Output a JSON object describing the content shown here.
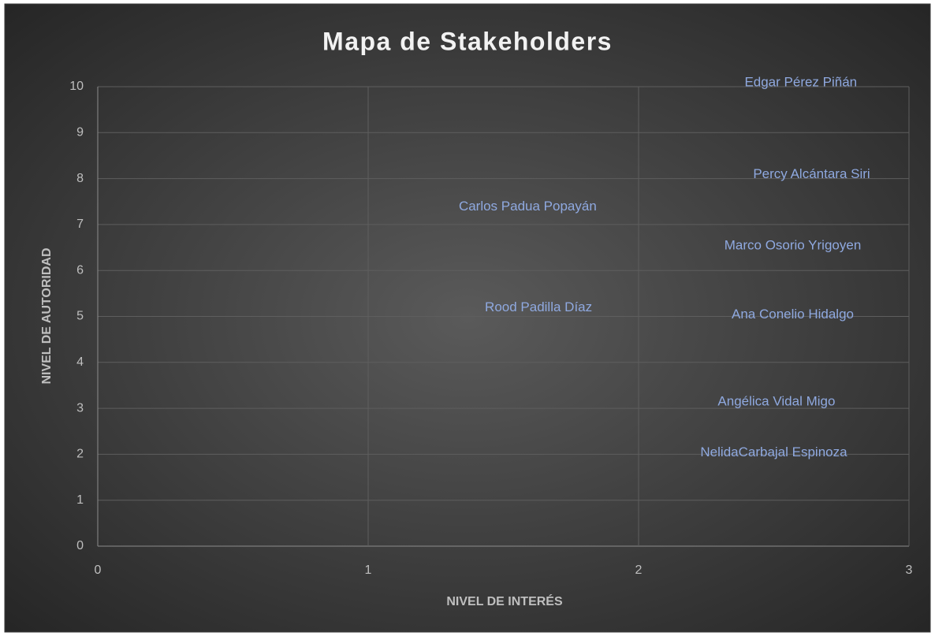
{
  "chart_data": {
    "type": "scatter",
    "title": "Mapa de Stakeholders",
    "x_label": "NIVEL DE INTERÉS",
    "y_label": "NIVEL DE AUTORIDAD",
    "labels": [
      "Edgar Pérez Piñán",
      "Percy Alcántara Siri",
      "Carlos Padua Popayán",
      "Marco Osorio Yrigoyen",
      "Rood Padilla Díaz",
      "Ana Conelio Hidalgo",
      "Angélica Vidal Migo",
      "NelidaCarbajal Espinoza"
    ],
    "x": [
      2.6,
      2.64,
      1.59,
      2.57,
      1.63,
      2.57,
      2.51,
      2.5
    ],
    "y": [
      10,
      8,
      7.3,
      6.45,
      5.1,
      4.95,
      3.05,
      1.95
    ],
    "color": "#8fa9e0",
    "xlim": [
      0,
      3
    ],
    "xticks": [
      0,
      1,
      2,
      3
    ],
    "ylim": [
      0,
      10
    ],
    "yticks": [
      0,
      1,
      2,
      3,
      4,
      5,
      6,
      7,
      8,
      9,
      10
    ],
    "grid": true
  }
}
